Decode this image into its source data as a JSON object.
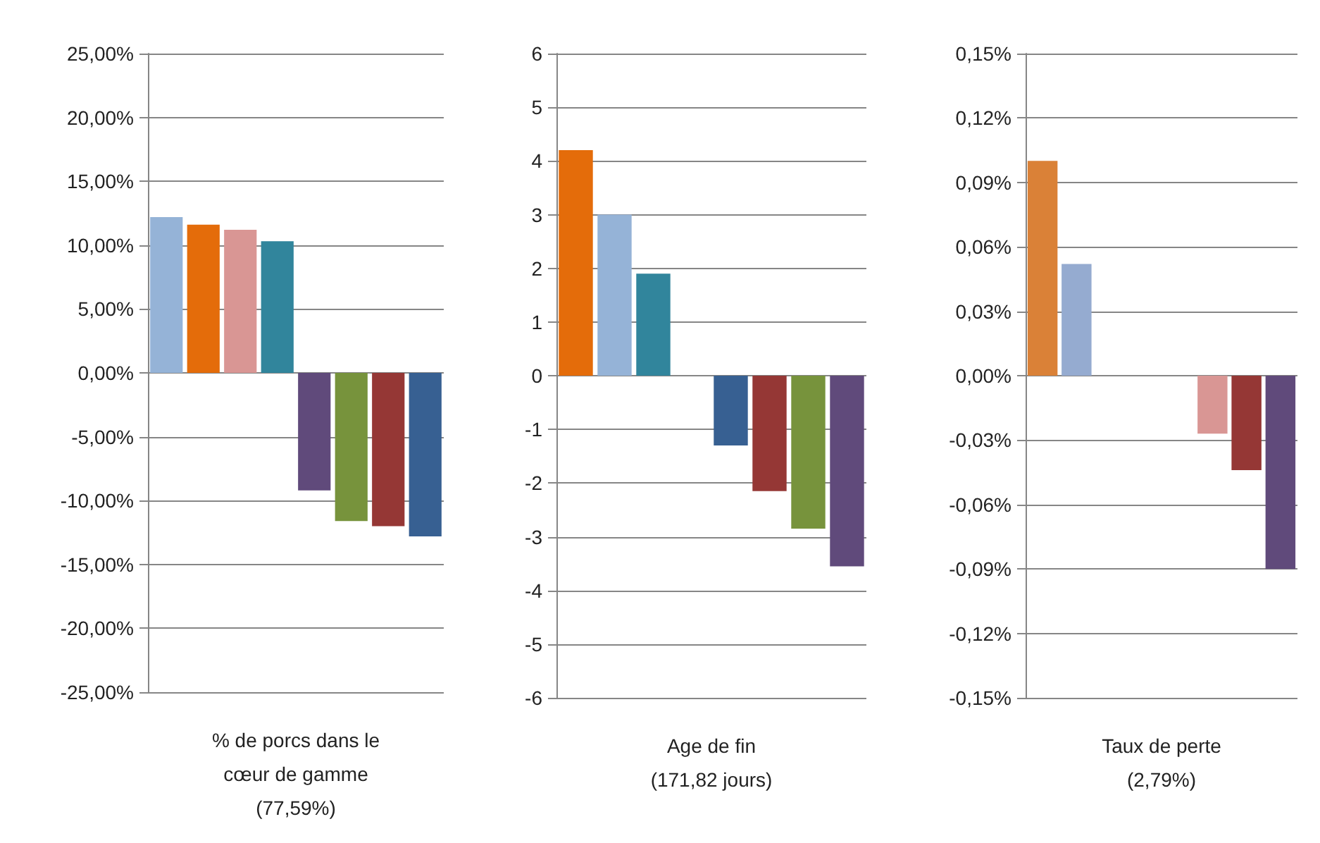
{
  "chart_data": [
    {
      "type": "bar",
      "xlabel": "% de porcs dans le\ncœur de gamme\n(77,59%)",
      "categories": [
        null,
        null,
        null,
        null,
        null,
        null,
        null,
        null
      ],
      "values": [
        12.2,
        11.6,
        11.2,
        10.3,
        -9.2,
        -11.6,
        -12.0,
        -12.8
      ],
      "colors": [
        "#95b3d7",
        "#e46c0a",
        "#d99694",
        "#31859c",
        "#604a7b",
        "#77933c",
        "#953735",
        "#376092"
      ],
      "ylim": [
        -25,
        25
      ],
      "yticks": [
        {
          "value": -25,
          "label": "-25,00%"
        },
        {
          "value": -20,
          "label": "-20,00%"
        },
        {
          "value": -15,
          "label": "-15,00%"
        },
        {
          "value": -10,
          "label": "-10,00%"
        },
        {
          "value": -5,
          "label": "-5,00%"
        },
        {
          "value": 0,
          "label": "0,00%"
        },
        {
          "value": 5,
          "label": "5,00%"
        },
        {
          "value": 10,
          "label": "10,00%"
        },
        {
          "value": 15,
          "label": "15,00%"
        },
        {
          "value": 20,
          "label": "20,00%"
        },
        {
          "value": 25,
          "label": "25,00%"
        }
      ],
      "grid": "y",
      "tick_labels": "y"
    },
    {
      "type": "bar",
      "xlabel": "Age de fin\n(171,82 jours)",
      "categories": [
        null,
        null,
        null,
        null,
        null,
        null,
        null,
        null
      ],
      "values": [
        4.2,
        3.0,
        1.9,
        null,
        -1.3,
        -2.15,
        -2.85,
        -3.55
      ],
      "colors": [
        "#e46c0a",
        "#95b3d7",
        "#31859c",
        null,
        "#376092",
        "#953735",
        "#77933c",
        "#604a7b"
      ],
      "ylim": [
        -6,
        6
      ],
      "yticks": [
        -6,
        -5,
        -4,
        -3,
        -2,
        -1,
        0,
        1,
        2,
        3,
        4,
        5,
        6
      ],
      "grid": "y",
      "tick_labels": "y"
    },
    {
      "type": "bar",
      "xlabel": "Taux de perte\n(2,79%)",
      "categories": [
        null,
        null,
        null,
        null,
        null,
        null,
        null,
        null
      ],
      "values": [
        0.1,
        0.052,
        null,
        null,
        null,
        -0.027,
        -0.044,
        -0.09
      ],
      "colors": [
        "#da8137",
        "#95abd0",
        null,
        null,
        null,
        "#d99694",
        "#953735",
        "#604a7b"
      ],
      "ylim": [
        -0.15,
        0.15
      ],
      "yticks": [
        {
          "value": -0.15,
          "label": "-0,15%"
        },
        {
          "value": -0.12,
          "label": "-0,12%"
        },
        {
          "value": -0.09,
          "label": "-0,09%"
        },
        {
          "value": -0.06,
          "label": "-0,06%"
        },
        {
          "value": -0.03,
          "label": "-0,03%"
        },
        {
          "value": 0,
          "label": "0,00%"
        },
        {
          "value": 0.03,
          "label": "0,03%"
        },
        {
          "value": 0.06,
          "label": "0,06%"
        },
        {
          "value": 0.09,
          "label": "0,09%"
        },
        {
          "value": 0.12,
          "label": "0,12%"
        },
        {
          "value": 0.15,
          "label": "0,15%"
        }
      ],
      "grid": "y",
      "tick_labels": "y"
    }
  ]
}
